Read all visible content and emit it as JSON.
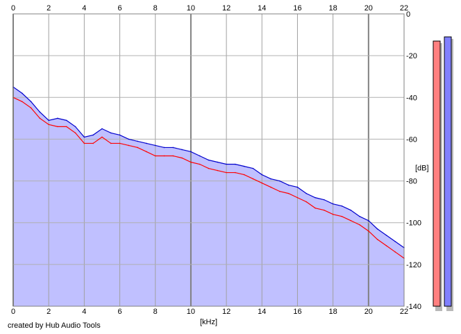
{
  "footer": {
    "credit": "created by Hub Audio Tools"
  },
  "chart_data": {
    "type": "line",
    "xlabel": "[kHz]",
    "ylabel": "[dB]",
    "xlim": [
      0,
      22
    ],
    "ylim": [
      -140,
      0
    ],
    "x_ticks": [
      "0",
      "2",
      "4",
      "6",
      "8",
      "10",
      "12",
      "14",
      "16",
      "18",
      "20",
      "22"
    ],
    "y_ticks": [
      "0",
      "-20",
      "-40",
      "-60",
      "-80",
      "-100",
      "-120",
      "-140"
    ],
    "grid": true,
    "background": "#ffffff",
    "fill_color": "#c0c0ff",
    "series": [
      {
        "color": "#ff0000",
        "x": [
          0,
          0.5,
          1,
          1.5,
          2,
          2.5,
          3,
          3.5,
          4,
          4.5,
          5,
          5.5,
          6,
          6.5,
          7,
          7.5,
          8,
          8.5,
          9,
          9.5,
          10,
          10.5,
          11,
          11.5,
          12,
          12.5,
          13,
          13.5,
          14,
          14.5,
          15,
          15.5,
          16,
          16.5,
          17,
          17.5,
          18,
          18.5,
          19,
          19.5,
          20,
          20.5,
          21,
          21.5,
          22
        ],
        "y": [
          -40,
          -42,
          -45,
          -50,
          -53,
          -54,
          -54,
          -57,
          -62,
          -62,
          -59,
          -62,
          -62,
          -63,
          -64,
          -66,
          -68,
          -68,
          -68,
          -69,
          -71,
          -72,
          -74,
          -75,
          -76,
          -76,
          -77,
          -79,
          -81,
          -83,
          -85,
          -86,
          -88,
          -90,
          -93,
          -94,
          -96,
          -97,
          -99,
          -101,
          -104,
          -108,
          -111,
          -114,
          -117
        ]
      },
      {
        "color": "#0000cc",
        "x": [
          0,
          0.5,
          1,
          1.5,
          2,
          2.5,
          3,
          3.5,
          4,
          4.5,
          5,
          5.5,
          6,
          6.5,
          7,
          7.5,
          8,
          8.5,
          9,
          9.5,
          10,
          10.5,
          11,
          11.5,
          12,
          12.5,
          13,
          13.5,
          14,
          14.5,
          15,
          15.5,
          16,
          16.5,
          17,
          17.5,
          18,
          18.5,
          19,
          19.5,
          20,
          20.5,
          21,
          21.5,
          22
        ],
        "y": [
          -35,
          -38,
          -42,
          -47,
          -51,
          -50,
          -51,
          -54,
          -59,
          -58,
          -55,
          -57,
          -58,
          -60,
          -61,
          -62,
          -63,
          -64,
          -64,
          -65,
          -66,
          -68,
          -70,
          -71,
          -72,
          -72,
          -73,
          -74,
          -77,
          -79,
          -80,
          -82,
          -83,
          -86,
          -88,
          -89,
          -91,
          -92,
          -94,
          -97,
          -99,
          -103,
          -106,
          -109,
          -112
        ]
      }
    ],
    "meters": [
      {
        "color": "#ff8080",
        "level_db": -13
      },
      {
        "color": "#8080ff",
        "level_db": -11
      }
    ]
  }
}
